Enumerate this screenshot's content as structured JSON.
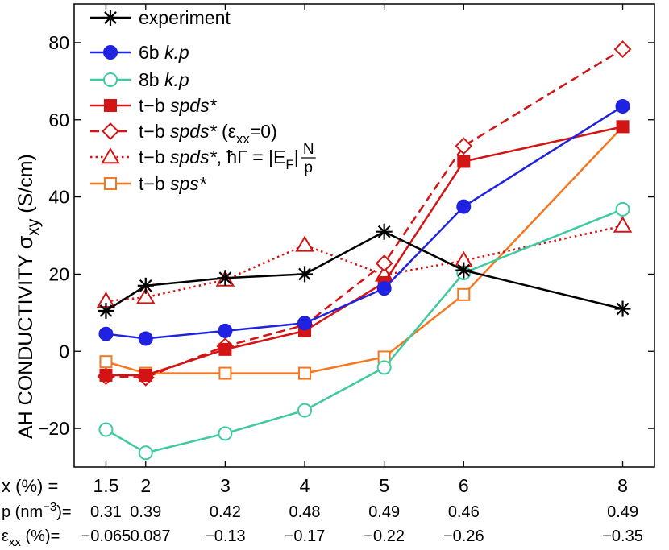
{
  "chart_data": {
    "type": "line",
    "ylabel": "AH CONDUCTIVITY",
    "ylabel_symbol": "σ",
    "ylabel_subscript": "xy",
    "ylabel_unit": "(S/cm)",
    "ylim": [
      -30,
      90
    ],
    "yticks": [
      -20,
      0,
      20,
      40,
      60,
      80
    ],
    "ytick_labels": [
      "−20",
      "0",
      "20",
      "40",
      "60",
      "80"
    ],
    "xlim": [
      1.1,
      8.4
    ],
    "x": [
      1.5,
      2,
      3,
      4,
      5,
      6,
      8
    ],
    "bottom_rows": [
      {
        "label": "x (%) =",
        "values": [
          "1.5",
          "2",
          "3",
          "4",
          "5",
          "6",
          "8"
        ]
      },
      {
        "label": "p (nm⁻³)=",
        "values": [
          "0.31",
          "0.39",
          "0.42",
          "0.48",
          "0.49",
          "0.46",
          "0.49"
        ]
      },
      {
        "label": "εxx (%)=",
        "values": [
          "−0.065",
          "−0.087",
          "−0.13",
          "−0.17",
          "−0.22",
          "−0.26",
          "−0.35"
        ]
      }
    ],
    "series": [
      {
        "name": "experiment",
        "color": "#000000",
        "dash": "solid",
        "marker": "star",
        "values": [
          10.5,
          17,
          19,
          20,
          31,
          21,
          11
        ]
      },
      {
        "name": "6b k.p",
        "color": "#1f22e0",
        "dash": "solid",
        "marker": "filled-circle",
        "values": [
          4.5,
          3.3,
          5.3,
          7.3,
          16.3,
          37.5,
          63.5
        ]
      },
      {
        "name": "8b k.p",
        "color": "#3ec9a0",
        "dash": "solid",
        "marker": "open-circle",
        "values": [
          -20.3,
          -26.3,
          -21.3,
          -15.3,
          -4.2,
          20.3,
          36.8
        ]
      },
      {
        "name": "t-b spds*",
        "color": "#d41414",
        "dash": "solid",
        "marker": "filled-square",
        "values": [
          -6.2,
          -6.2,
          0.5,
          5.3,
          17.8,
          49.2,
          58.2
        ]
      },
      {
        "name": "t-b spds* (εxx=0)",
        "color": "#d41414",
        "dash": "dashed",
        "marker": "open-diamond",
        "values": [
          -6.5,
          -6.8,
          1.3,
          6.8,
          22.8,
          53.2,
          78.3
        ]
      },
      {
        "name": "t-b spds*, ħΓ = |EF| N/p",
        "color": "#d41414",
        "dash": "dotted",
        "marker": "open-triangle",
        "values": [
          13,
          14,
          18.5,
          27.5,
          19.8,
          23.5,
          32.5
        ]
      },
      {
        "name": "t-b sps*",
        "color": "#f5761d",
        "dash": "solid",
        "marker": "open-square",
        "values": [
          -2.7,
          -5.7,
          -5.7,
          -5.7,
          -1.5,
          14.7,
          58.2
        ]
      }
    ],
    "legend": {
      "position": "top-left",
      "entries": [
        {
          "prefix": "experiment",
          "italic": "",
          "suffix": ""
        },
        {
          "prefix": "6b ",
          "italic": "k.p",
          "suffix": ""
        },
        {
          "prefix": "8b ",
          "italic": "k.p",
          "suffix": ""
        },
        {
          "prefix": "t−b ",
          "italic": "spds*",
          "suffix": ""
        },
        {
          "prefix": "t−b ",
          "italic": "spds*",
          "suffix": " (ε",
          "sub": "xx",
          "suffix2": "=0)"
        },
        {
          "prefix": "t−b ",
          "italic": "spds*",
          "suffix": ", ħΓ = |E",
          "sub": "F",
          "suffix2": "|",
          "frac_num": "N",
          "frac_den": "p"
        },
        {
          "prefix": "t−b ",
          "italic": "sps*",
          "suffix": ""
        }
      ]
    }
  }
}
